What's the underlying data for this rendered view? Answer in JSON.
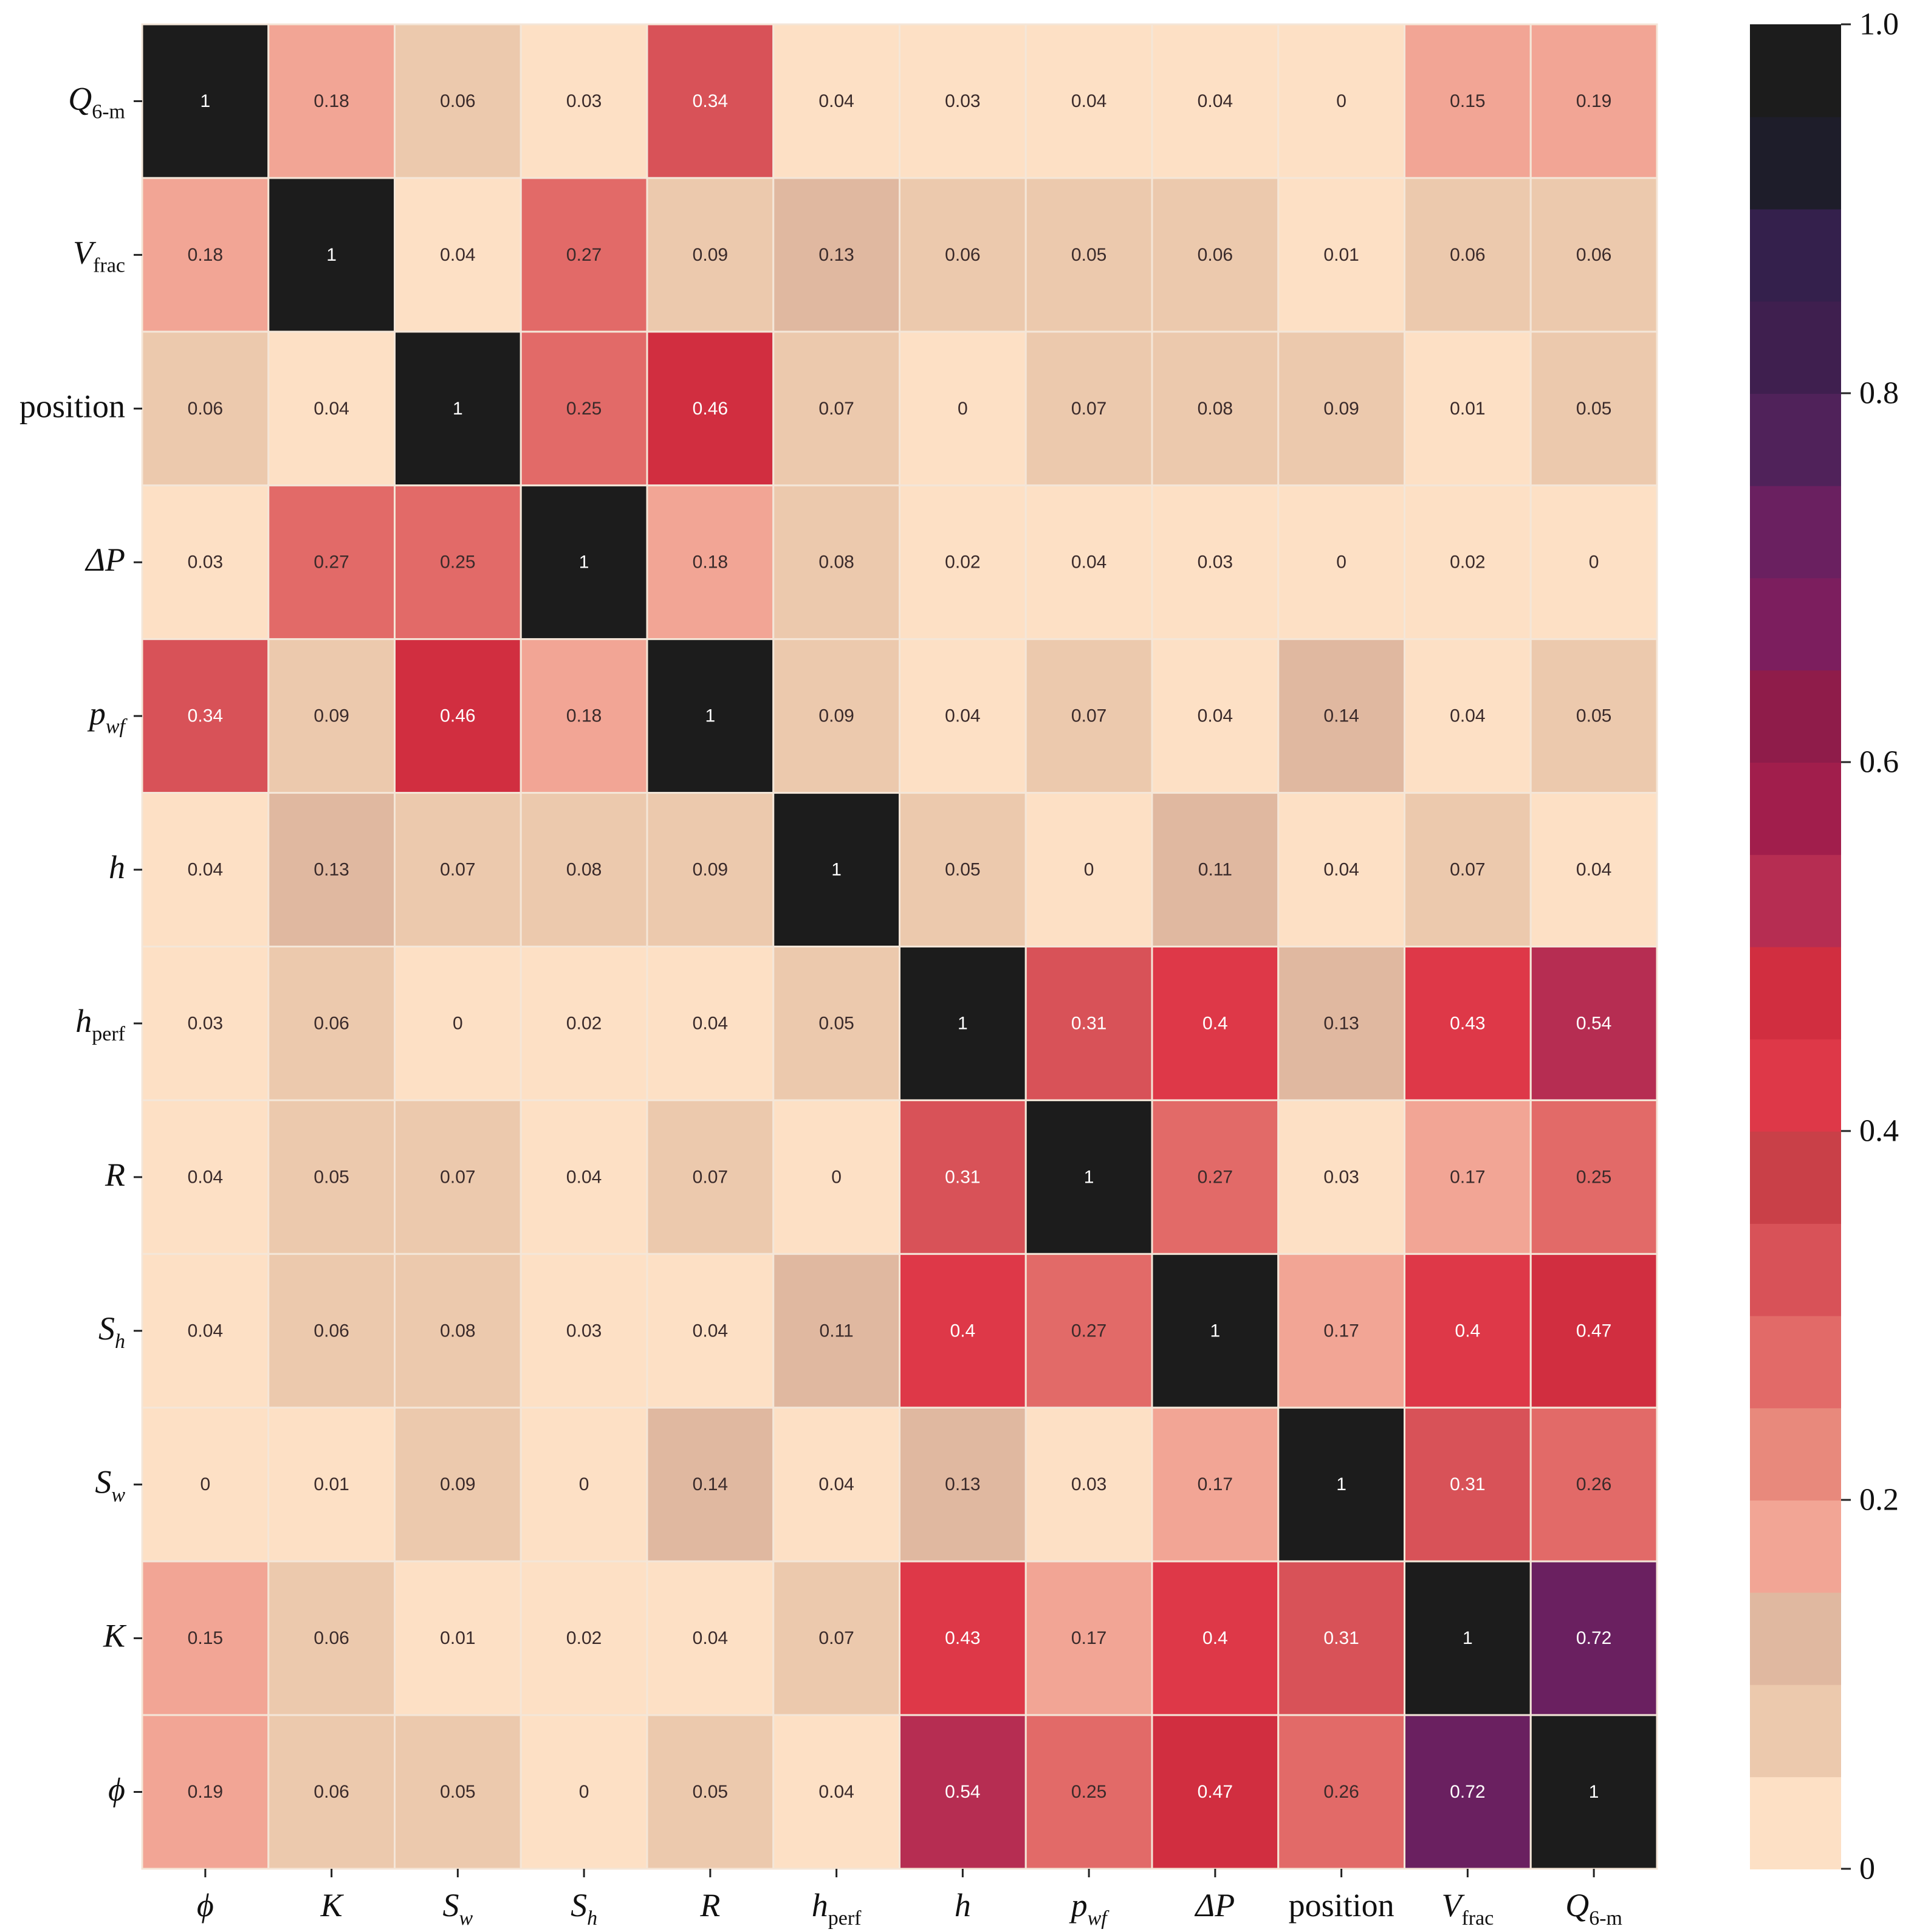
{
  "chart_data": {
    "type": "heatmap",
    "title": "",
    "xlabel": "",
    "ylabel": "",
    "x_labels": [
      {
        "main": "ϕ",
        "sub": ""
      },
      {
        "main": "K",
        "sub": ""
      },
      {
        "main": "S",
        "sub": "w"
      },
      {
        "main": "S",
        "sub": "h"
      },
      {
        "main": "R",
        "sub": ""
      },
      {
        "main": "h",
        "sub": "perf"
      },
      {
        "main": "h",
        "sub": ""
      },
      {
        "main": "p",
        "sub": "wf"
      },
      {
        "main": "ΔP",
        "sub": ""
      },
      {
        "main": "position",
        "sub": ""
      },
      {
        "main": "V",
        "sub": "frac"
      },
      {
        "main": "Q",
        "sub": "6-m"
      }
    ],
    "y_labels": [
      {
        "main": "Q",
        "sub": "6-m"
      },
      {
        "main": "V",
        "sub": "frac"
      },
      {
        "main": "position",
        "sub": ""
      },
      {
        "main": "ΔP",
        "sub": ""
      },
      {
        "main": "p",
        "sub": "wf"
      },
      {
        "main": "h",
        "sub": ""
      },
      {
        "main": "h",
        "sub": "perf"
      },
      {
        "main": "R",
        "sub": ""
      },
      {
        "main": "S",
        "sub": "h"
      },
      {
        "main": "S",
        "sub": "w"
      },
      {
        "main": "K",
        "sub": ""
      },
      {
        "main": "ϕ",
        "sub": ""
      }
    ],
    "values": [
      [
        1,
        0.18,
        0.06,
        0.03,
        0.34,
        0.04,
        0.03,
        0.04,
        0.04,
        0,
        0.15,
        0.19
      ],
      [
        0.18,
        1,
        0.04,
        0.27,
        0.09,
        0.13,
        0.06,
        0.05,
        0.06,
        0.01,
        0.06,
        0.06
      ],
      [
        0.06,
        0.04,
        1,
        0.25,
        0.46,
        0.07,
        0,
        0.07,
        0.08,
        0.09,
        0.01,
        0.05
      ],
      [
        0.03,
        0.27,
        0.25,
        1,
        0.18,
        0.08,
        0.02,
        0.04,
        0.03,
        0,
        0.02,
        0
      ],
      [
        0.34,
        0.09,
        0.46,
        0.18,
        1,
        0.09,
        0.04,
        0.07,
        0.04,
        0.14,
        0.04,
        0.05
      ],
      [
        0.04,
        0.13,
        0.07,
        0.08,
        0.09,
        1,
        0.05,
        0,
        0.11,
        0.04,
        0.07,
        0.04
      ],
      [
        0.03,
        0.06,
        0,
        0.02,
        0.04,
        0.05,
        1,
        0.31,
        0.4,
        0.13,
        0.43,
        0.54
      ],
      [
        0.04,
        0.05,
        0.07,
        0.04,
        0.07,
        0,
        0.31,
        1,
        0.27,
        0.03,
        0.17,
        0.25
      ],
      [
        0.04,
        0.06,
        0.08,
        0.03,
        0.04,
        0.11,
        0.4,
        0.27,
        1,
        0.17,
        0.4,
        0.47
      ],
      [
        0,
        0.01,
        0.09,
        0,
        0.14,
        0.04,
        0.13,
        0.03,
        0.17,
        1,
        0.31,
        0.26
      ],
      [
        0.15,
        0.06,
        0.01,
        0.02,
        0.04,
        0.07,
        0.43,
        0.17,
        0.4,
        0.31,
        1,
        0.72
      ],
      [
        0.19,
        0.06,
        0.05,
        0,
        0.05,
        0.04,
        0.54,
        0.25,
        0.47,
        0.26,
        0.72,
        1
      ]
    ],
    "colorbar": {
      "range": [
        0,
        1.0
      ],
      "ticks": [
        "0",
        "0.2",
        "0.4",
        "0.6",
        "0.8",
        "1.0"
      ],
      "tick_values": [
        0,
        0.2,
        0.4,
        0.6,
        0.8,
        1.0
      ],
      "levels": 20
    },
    "colormap_stops": [
      "#fde0c5",
      "#ecc9ad",
      "#e0b8a0",
      "#f2a595",
      "#e8897c",
      "#e26a68",
      "#d85258",
      "#c94048",
      "#de3848",
      "#d12e40",
      "#b62d52",
      "#a11e4c",
      "#8f1c4a",
      "#7c1e5e",
      "#6a2060",
      "#50225a",
      "#3f1f4f",
      "#34204c",
      "#1e1d2a",
      "#1c1c1c"
    ]
  }
}
